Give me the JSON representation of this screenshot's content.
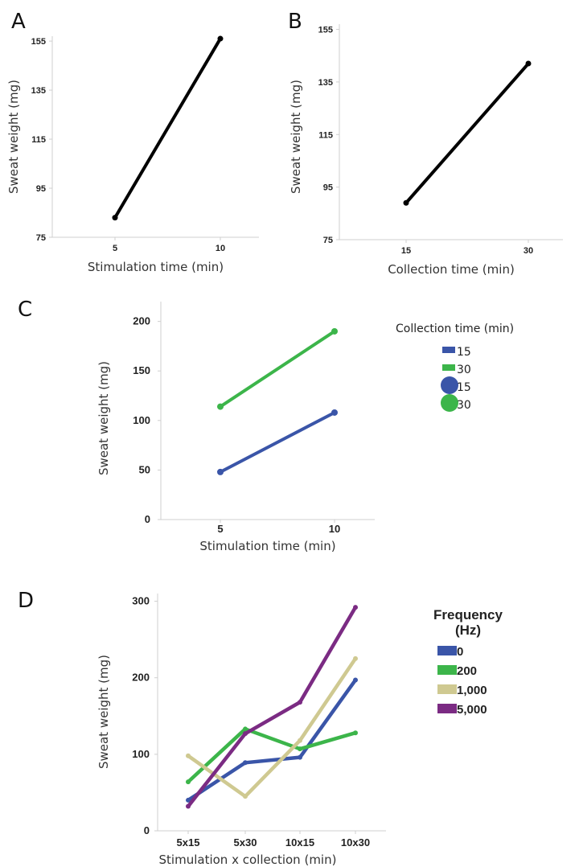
{
  "chart_data": [
    {
      "panel": "A",
      "type": "line",
      "xlabel": "Stimulation time (min)",
      "ylabel": "Sweat weight (mg)",
      "categories": [
        "5",
        "10"
      ],
      "yticks": [
        "75",
        "95",
        "115",
        "135",
        "155"
      ],
      "ylim": [
        75,
        157
      ],
      "series": [
        {
          "values": [
            83,
            156
          ],
          "color": "#000000"
        }
      ]
    },
    {
      "panel": "B",
      "type": "line",
      "xlabel": "Collection time (min)",
      "ylabel": "Sweat weight (mg)",
      "categories": [
        "15",
        "30"
      ],
      "yticks": [
        "75",
        "95",
        "115",
        "135",
        "155"
      ],
      "ylim": [
        75,
        157
      ],
      "series": [
        {
          "values": [
            89,
            142
          ],
          "color": "#000000"
        }
      ]
    },
    {
      "panel": "C",
      "type": "line",
      "xlabel": "Stimulation time (min)",
      "ylabel": "Sweat weight (mg)",
      "categories": [
        "5",
        "10"
      ],
      "yticks": [
        "0",
        "50",
        "100",
        "150",
        "200"
      ],
      "ylim": [
        0,
        220
      ],
      "legend_title": "Collection time (min)",
      "legend": [
        {
          "label": "15",
          "marker": "line",
          "color": "#3a55a8"
        },
        {
          "label": "30",
          "marker": "line",
          "color": "#3cb54a"
        },
        {
          "label": "15",
          "marker": "circle",
          "color": "#3a55a8"
        },
        {
          "label": "30",
          "marker": "circle",
          "color": "#3cb54a"
        }
      ],
      "series": [
        {
          "name": "15",
          "values": [
            48,
            108
          ],
          "color": "#3a55a8"
        },
        {
          "name": "30",
          "values": [
            114,
            190
          ],
          "color": "#3cb54a"
        }
      ]
    },
    {
      "panel": "D",
      "type": "line",
      "xlabel": "Stimulation x collection (min)",
      "ylabel": "Sweat weight (mg)",
      "categories": [
        "5x15",
        "5x30",
        "10x15",
        "10x30"
      ],
      "yticks": [
        "0",
        "100",
        "200",
        "300"
      ],
      "ylim": [
        0,
        310
      ],
      "legend_title_lines": [
        "Frequency",
        "(Hz)"
      ],
      "series": [
        {
          "name": "0",
          "values": [
            40,
            89,
            96,
            197
          ],
          "color": "#3a55a8"
        },
        {
          "name": "200",
          "values": [
            64,
            133,
            107,
            128
          ],
          "color": "#3cb54a"
        },
        {
          "name": "1,000",
          "values": [
            98,
            45,
            118,
            225
          ],
          "color": "#cfc991"
        },
        {
          "name": "5,000",
          "values": [
            32,
            127,
            168,
            292
          ],
          "color": "#7b2b83"
        }
      ]
    }
  ]
}
